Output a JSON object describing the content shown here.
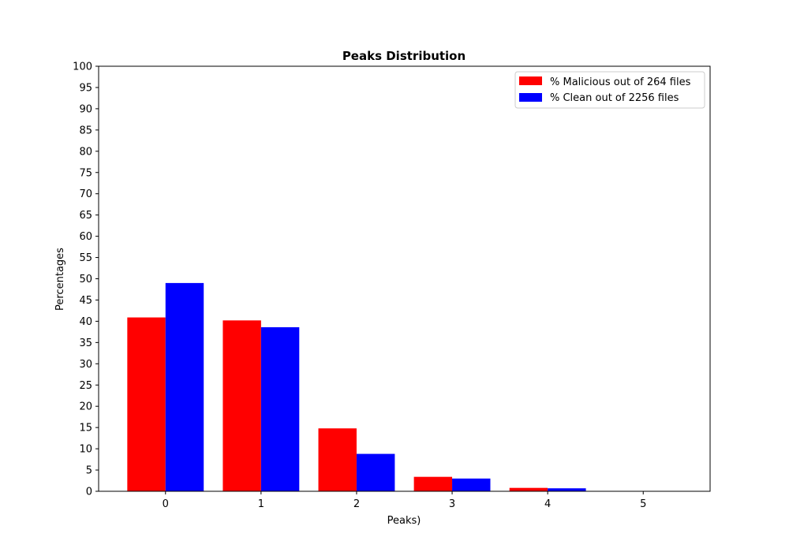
{
  "chart_data": {
    "type": "bar",
    "title": "Peaks Distribution",
    "xlabel": "Peaks)",
    "ylabel": "Percentages",
    "categories": [
      "0",
      "1",
      "2",
      "3",
      "4",
      "5"
    ],
    "ylim": [
      0,
      100
    ],
    "yticks": [
      0,
      5,
      10,
      15,
      20,
      25,
      30,
      35,
      40,
      45,
      50,
      55,
      60,
      65,
      70,
      75,
      80,
      85,
      90,
      95,
      100
    ],
    "grid": false,
    "legend_position": "top-right",
    "series": [
      {
        "name": "% Malicious out of 264 files",
        "color": "#ff0000",
        "values": [
          40.9,
          40.2,
          14.8,
          3.4,
          0.8,
          0.0
        ]
      },
      {
        "name": "% Clean out of 2256 files",
        "color": "#0000ff",
        "values": [
          49.0,
          38.6,
          8.8,
          3.0,
          0.7,
          0.0
        ]
      }
    ]
  }
}
